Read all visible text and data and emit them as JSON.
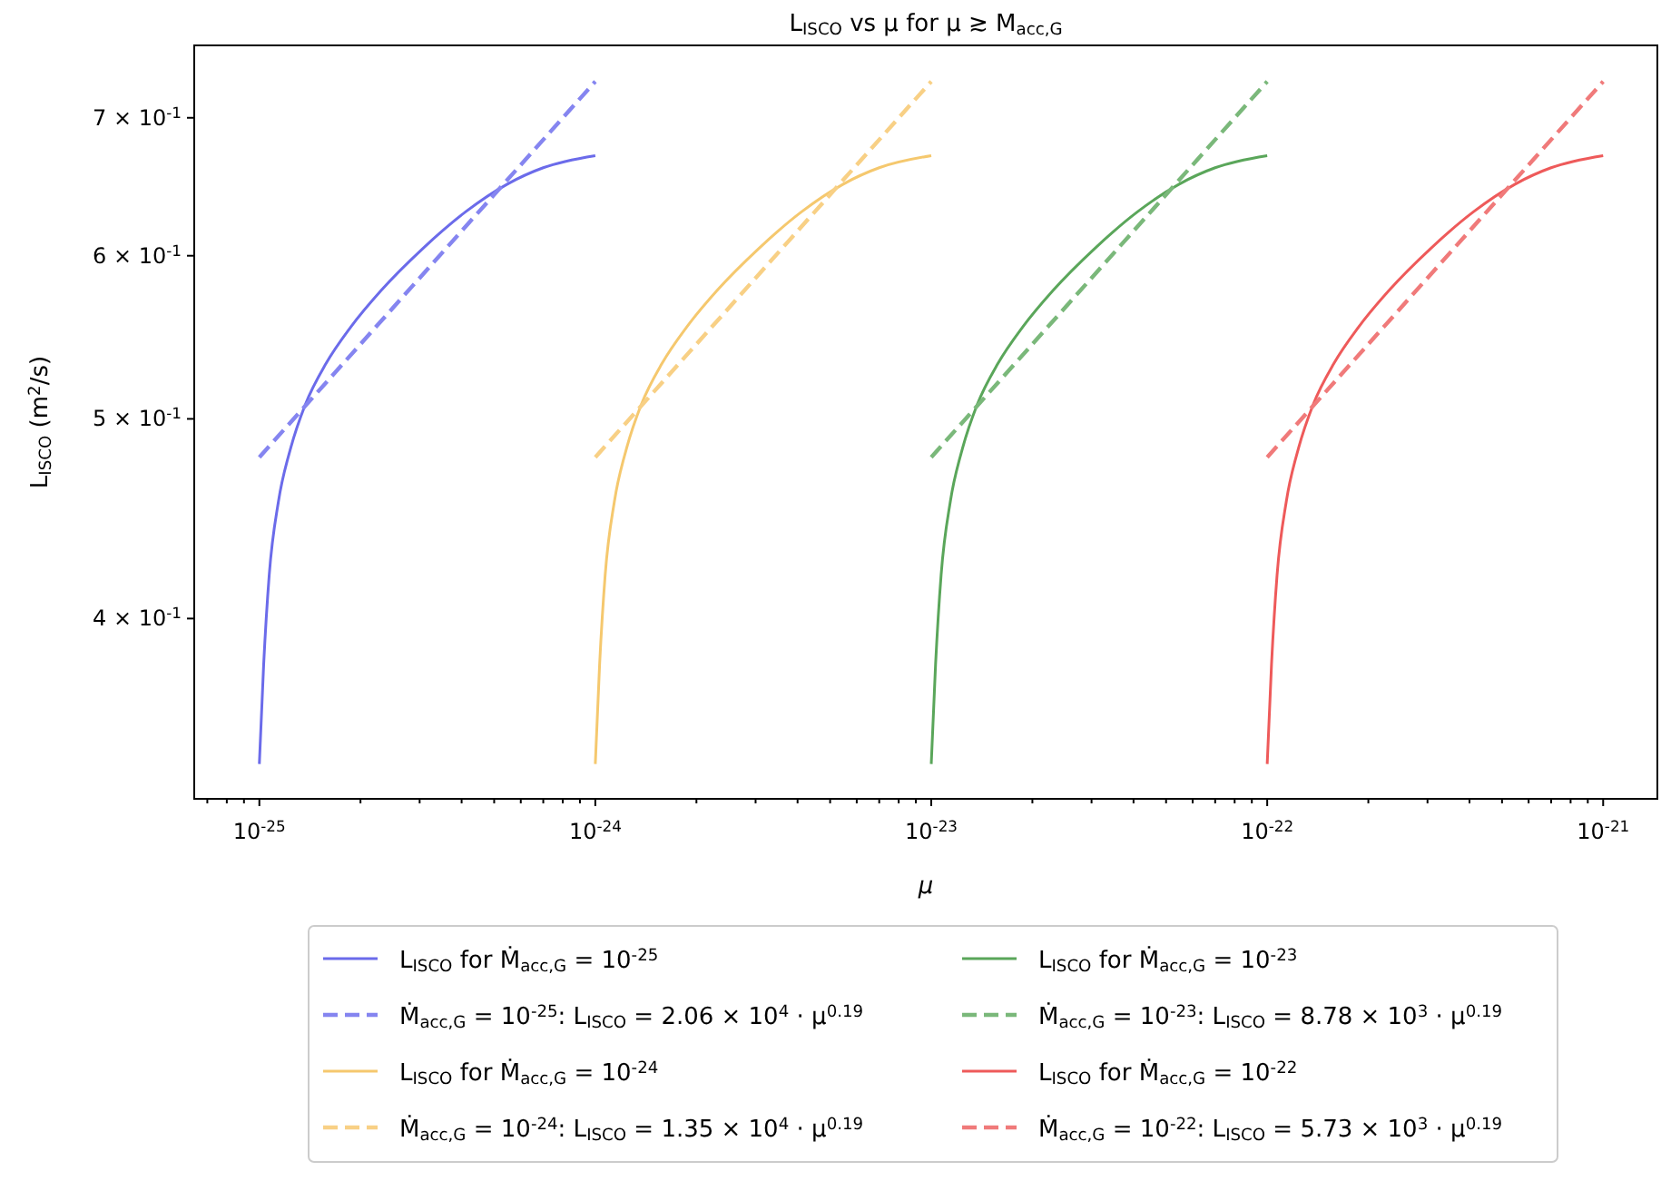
{
  "chart_data": {
    "type": "line",
    "title": "L$_{ISCO}$ vs μ for μ ≳ M$_{acc,G}$",
    "xlabel": "μ",
    "ylabel": "L$_{ISCO}$ (m$^{2}$/s)",
    "log": "xy",
    "grid": false,
    "legend": "bottom",
    "marker": "none",
    "xlim": [
      6.4e-26,
      1.45e-21
    ],
    "ylim": [
      0.327,
      0.759
    ],
    "xticks": [
      {
        "value": 7e-26,
        "label": null
      },
      {
        "value": 8e-26,
        "label": null
      },
      {
        "value": 9e-26,
        "label": null
      },
      {
        "value": 1e-25,
        "label": "10$^{-25}$"
      },
      {
        "value": 2e-25,
        "label": null
      },
      {
        "value": 3e-25,
        "label": null
      },
      {
        "value": 4e-25,
        "label": null
      },
      {
        "value": 5e-25,
        "label": null
      },
      {
        "value": 6e-25,
        "label": null
      },
      {
        "value": 7e-25,
        "label": null
      },
      {
        "value": 8e-25,
        "label": null
      },
      {
        "value": 9e-25,
        "label": null
      },
      {
        "value": 1e-24,
        "label": "10$^{-24}$"
      },
      {
        "value": 2e-24,
        "label": null
      },
      {
        "value": 3e-24,
        "label": null
      },
      {
        "value": 4e-24,
        "label": null
      },
      {
        "value": 5e-24,
        "label": null
      },
      {
        "value": 6e-24,
        "label": null
      },
      {
        "value": 7e-24,
        "label": null
      },
      {
        "value": 8e-24,
        "label": null
      },
      {
        "value": 9e-24,
        "label": null
      },
      {
        "value": 1e-23,
        "label": "10$^{-23}$"
      },
      {
        "value": 2e-23,
        "label": null
      },
      {
        "value": 3e-23,
        "label": null
      },
      {
        "value": 4e-23,
        "label": null
      },
      {
        "value": 5e-23,
        "label": null
      },
      {
        "value": 6e-23,
        "label": null
      },
      {
        "value": 7e-23,
        "label": null
      },
      {
        "value": 8e-23,
        "label": null
      },
      {
        "value": 9e-23,
        "label": null
      },
      {
        "value": 1e-22,
        "label": "10$^{-22}$"
      },
      {
        "value": 2e-22,
        "label": null
      },
      {
        "value": 3e-22,
        "label": null
      },
      {
        "value": 4e-22,
        "label": null
      },
      {
        "value": 5e-22,
        "label": null
      },
      {
        "value": 6e-22,
        "label": null
      },
      {
        "value": 7e-22,
        "label": null
      },
      {
        "value": 8e-22,
        "label": null
      },
      {
        "value": 9e-22,
        "label": null
      },
      {
        "value": 1e-21,
        "label": "10$^{-21}$"
      }
    ],
    "yticks": [
      {
        "value": 0.4,
        "label": "4 × 10$^{-1}$"
      },
      {
        "value": 0.5,
        "label": "5 × 10$^{-1}$"
      },
      {
        "value": 0.6,
        "label": "6 × 10$^{-1}$"
      },
      {
        "value": 0.7,
        "label": "7 × 10$^{-1}$"
      }
    ],
    "series": [
      {
        "name": "L$_{ISCO}$ for Ṁ$_{acc,G}$ = 10$^{-25}$",
        "color": "#6b6bea",
        "line_style": "solid",
        "x": [
          1e-25,
          1.03e-25,
          1.07e-25,
          1.14e-25,
          1.24e-25,
          1.37e-25,
          1.58e-25,
          1.87e-25,
          2.3e-25,
          3.07e-25,
          4.1e-25,
          5.47e-25,
          7e-25,
          1e-24
        ],
        "values": [
          0.34,
          0.38,
          0.42,
          0.456,
          0.484,
          0.508,
          0.532,
          0.554,
          0.577,
          0.605,
          0.63,
          0.65,
          0.662,
          0.671
        ]
      },
      {
        "name": "Ṁ$_{acc,G}$ = 10$^{-25}$: L$_{ISCO}$ = 2.06 × 10$^{4}$ · μ$^{0.19}$",
        "color": "#8585f0",
        "line_style": "dashed",
        "x": [
          1e-25,
          1e-24
        ],
        "values": [
          0.479,
          0.729
        ]
      },
      {
        "name": "L$_{ISCO}$ for Ṁ$_{acc,G}$ = 10$^{-24}$",
        "color": "#f5c86e",
        "line_style": "solid",
        "x": [
          1e-24,
          1.03e-24,
          1.07e-24,
          1.14e-24,
          1.24e-24,
          1.37e-24,
          1.58e-24,
          1.87e-24,
          2.3e-24,
          3.07e-24,
          4.1e-24,
          5.47e-24,
          7e-24,
          1e-23
        ],
        "values": [
          0.34,
          0.38,
          0.42,
          0.456,
          0.484,
          0.508,
          0.532,
          0.554,
          0.577,
          0.605,
          0.63,
          0.65,
          0.662,
          0.671
        ]
      },
      {
        "name": "Ṁ$_{acc,G}$ = 10$^{-24}$: L$_{ISCO}$ = 1.35 × 10$^{4}$ · μ$^{0.19}$",
        "color": "#f8d085",
        "line_style": "dashed",
        "x": [
          1e-24,
          1e-23
        ],
        "values": [
          0.479,
          0.729
        ]
      },
      {
        "name": "L$_{ISCO}$ for Ṁ$_{acc,G}$ = 10$^{-23}$",
        "color": "#5aa65a",
        "line_style": "solid",
        "x": [
          1e-23,
          1.03e-23,
          1.07e-23,
          1.14e-23,
          1.24e-23,
          1.37e-23,
          1.58e-23,
          1.87e-23,
          2.3e-23,
          3.07e-23,
          4.1e-23,
          5.47e-23,
          7e-23,
          1e-22
        ],
        "values": [
          0.34,
          0.38,
          0.42,
          0.456,
          0.484,
          0.508,
          0.532,
          0.554,
          0.577,
          0.605,
          0.63,
          0.65,
          0.662,
          0.671
        ]
      },
      {
        "name": "Ṁ$_{acc,G}$ = 10$^{-23}$: L$_{ISCO}$ = 8.78 × 10$^{3}$ · μ$^{0.19}$",
        "color": "#7ab87a",
        "line_style": "dashed",
        "x": [
          1e-23,
          1e-22
        ],
        "values": [
          0.479,
          0.729
        ]
      },
      {
        "name": "L$_{ISCO}$ for Ṁ$_{acc,G}$ = 10$^{-22}$",
        "color": "#ee5a5a",
        "line_style": "solid",
        "x": [
          1e-22,
          1.03e-22,
          1.07e-22,
          1.14e-22,
          1.24e-22,
          1.37e-22,
          1.58e-22,
          1.87e-22,
          2.3e-22,
          3.07e-22,
          4.1e-22,
          5.47e-22,
          7e-22,
          1e-21
        ],
        "values": [
          0.34,
          0.38,
          0.42,
          0.456,
          0.484,
          0.508,
          0.532,
          0.554,
          0.577,
          0.605,
          0.63,
          0.65,
          0.662,
          0.671
        ]
      },
      {
        "name": "Ṁ$_{acc,G}$ = 10$^{-22}$: L$_{ISCO}$ = 5.73 × 10$^{3}$ · μ$^{0.19}$",
        "color": "#f07a7a",
        "line_style": "dashed",
        "x": [
          1e-22,
          1e-21
        ],
        "values": [
          0.479,
          0.729
        ]
      }
    ]
  }
}
